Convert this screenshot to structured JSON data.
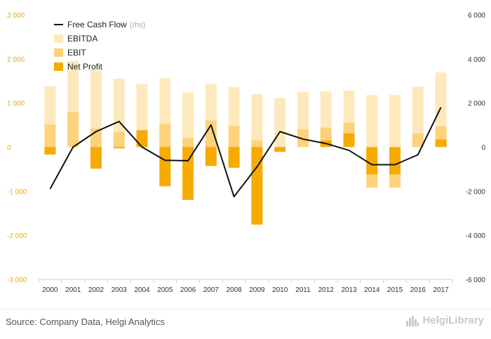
{
  "chart_data": {
    "type": "bar",
    "categories": [
      "2000",
      "2001",
      "2002",
      "2003",
      "2004",
      "2005",
      "2006",
      "2007",
      "2008",
      "2009",
      "2010",
      "2011",
      "2012",
      "2013",
      "2014",
      "2015",
      "2016",
      "2017"
    ],
    "series": [
      {
        "name": "EBITDA",
        "kind": "bar",
        "axis": "left",
        "color": "#fde9bb",
        "values": [
          1380,
          1950,
          1750,
          1550,
          1430,
          1560,
          1240,
          1430,
          1360,
          1200,
          1110,
          1250,
          1260,
          1280,
          1180,
          1180,
          1370,
          1690
        ]
      },
      {
        "name": "EBIT",
        "kind": "bar",
        "axis": "left",
        "color": "#fdd27a",
        "values": [
          510,
          790,
          420,
          340,
          370,
          520,
          200,
          600,
          480,
          150,
          -30,
          400,
          440,
          550,
          -920,
          -920,
          310,
          470
        ]
      },
      {
        "name": "Net Profit",
        "kind": "bar",
        "axis": "left",
        "color": "#f5ab00",
        "values": [
          -170,
          0,
          -490,
          -30,
          380,
          -890,
          -1200,
          -430,
          -470,
          -1760,
          -110,
          0,
          150,
          310,
          -620,
          -620,
          0,
          170
        ]
      },
      {
        "name": "Free Cash Flow",
        "kind": "line",
        "axis": "right",
        "note": "(rhs)",
        "color": "#111111",
        "values": [
          -1900,
          0,
          700,
          1160,
          0,
          -600,
          -620,
          1000,
          -2250,
          -900,
          700,
          360,
          160,
          -150,
          -800,
          -800,
          -350,
          1800
        ]
      }
    ],
    "y_left": {
      "min": -3000,
      "max": 3000,
      "ticks": [
        "-3 000",
        "-2 000",
        "-1 000",
        "0",
        "1 000",
        "2 000",
        "3 000"
      ],
      "tick_values": [
        -3000,
        -2000,
        -1000,
        0,
        1000,
        2000,
        3000
      ]
    },
    "y_right": {
      "min": -6000,
      "max": 6000,
      "ticks": [
        "-6 000",
        "-4 000",
        "-2 000",
        "0",
        "2 000",
        "4 000",
        "6 000"
      ],
      "tick_values": [
        -6000,
        -4000,
        -2000,
        0,
        2000,
        4000,
        6000
      ]
    },
    "title": "",
    "xlabel": "",
    "ylabel": "",
    "legend": "top-left",
    "grid": false
  },
  "legend_items": [
    {
      "label": "Free Cash Flow",
      "note": "(rhs)",
      "type": "line"
    },
    {
      "label": "EBITDA",
      "note": "",
      "type": "bar"
    },
    {
      "label": "EBIT",
      "note": "",
      "type": "bar"
    },
    {
      "label": "Net Profit",
      "note": "",
      "type": "bar"
    }
  ],
  "footer": {
    "source": "Source: Company Data, Helgi Analytics",
    "brand": "HelgiLibrary",
    "brand_icon": "bar-city-logo-icon"
  },
  "colors": {
    "left_axis_text": "#f2a900",
    "right_axis_text": "#333333",
    "axis_line": "#cccccc"
  }
}
